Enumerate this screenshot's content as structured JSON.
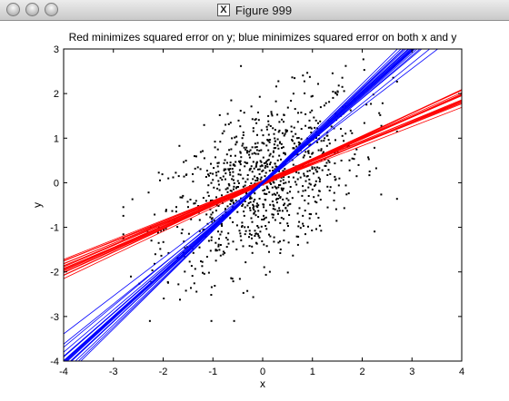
{
  "window": {
    "title": "Figure 999",
    "icon": "x11-icon",
    "buttons": [
      "close-icon",
      "minimize-icon",
      "zoom-icon"
    ]
  },
  "chart_data": {
    "type": "scatter",
    "title": "Red minimizes squared error on y; blue minimizes squared error on both x and y",
    "xlabel": "x",
    "ylabel": "y",
    "xlim": [
      -4,
      4
    ],
    "ylim": [
      -4,
      3
    ],
    "xticks": [
      -4,
      -3,
      -2,
      -1,
      0,
      1,
      2,
      3,
      4
    ],
    "yticks": [
      -4,
      -3,
      -2,
      -1,
      0,
      1,
      2,
      3
    ],
    "grid": false,
    "point_color": "#000000",
    "scatter": {
      "note": "Approx. 1000 black points, roughly bivariate normal centered at (0,0), sd about 1 in x and y, correlation about 0.5; extents x from -2.8 to 2.7, y from -3.1 to 2.8",
      "n": 1000,
      "center": [
        0,
        0
      ],
      "sd": [
        1,
        1
      ],
      "correlation": 0.5
    },
    "red_lines": {
      "color": "#ff0000",
      "description": "Least-squares fits of y on x (bootstrap resamples)",
      "slopes": [
        0.43,
        0.44,
        0.45,
        0.46,
        0.47,
        0.48,
        0.49,
        0.5,
        0.51,
        0.52,
        0.53,
        0.5,
        0.47,
        0.45,
        0.44,
        0.5,
        0.52,
        0.48,
        0.46,
        0.49
      ],
      "intercepts": [
        -0.03,
        0.04,
        -0.01,
        0.02,
        -0.04,
        0.05,
        0.0,
        -0.02,
        0.03,
        0.01,
        -0.03,
        0.02,
        -0.05,
        0.04,
        0.01,
        -0.01,
        0.0,
        0.03,
        -0.02,
        0.02
      ]
    },
    "blue_lines": {
      "color": "#0000ff",
      "description": "Total least-squares fits (orthogonal error on both x and y)",
      "slopes": [
        0.85,
        0.9,
        0.93,
        0.95,
        0.97,
        0.98,
        0.99,
        1.0,
        1.01,
        1.02,
        1.03,
        1.04,
        1.05,
        1.06,
        1.08,
        1.1,
        1.0,
        0.98,
        1.02,
        1.0
      ],
      "intercepts": [
        0.01,
        -0.02,
        0.03,
        0.0,
        -0.01,
        0.02,
        -0.03,
        0.01,
        0.0,
        0.02,
        -0.02,
        0.01,
        0.03,
        -0.01,
        0.0,
        0.02,
        -0.02,
        0.01,
        0.0,
        -0.01
      ]
    }
  }
}
